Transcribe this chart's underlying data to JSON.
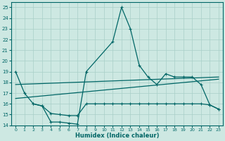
{
  "xlabel": "Humidex (Indice chaleur)",
  "xlim": [
    -0.5,
    23.5
  ],
  "ylim": [
    14,
    25.5
  ],
  "yticks": [
    14,
    15,
    16,
    17,
    18,
    19,
    20,
    21,
    22,
    23,
    24,
    25
  ],
  "xticks": [
    0,
    1,
    2,
    3,
    4,
    5,
    6,
    7,
    8,
    9,
    10,
    11,
    12,
    13,
    14,
    15,
    16,
    17,
    18,
    19,
    20,
    21,
    22,
    23
  ],
  "background_color": "#cde8e2",
  "grid_color": "#a8cfc8",
  "line_color": "#006666",
  "line1_x": [
    0,
    1,
    2,
    3,
    4,
    5,
    6,
    7,
    8,
    11,
    12,
    13,
    14,
    15,
    16,
    17,
    18,
    19,
    20,
    21,
    22,
    23
  ],
  "line1_y": [
    19,
    17,
    16,
    15.8,
    14.3,
    14.3,
    14.2,
    14.1,
    19,
    21.8,
    25,
    23,
    19.6,
    18.5,
    17.8,
    18.8,
    18.5,
    18.5,
    18.5,
    17.8,
    15.9,
    15.5
  ],
  "line2_x": [
    2,
    3,
    4,
    5,
    6,
    7,
    8,
    9,
    10,
    11,
    12,
    13,
    14,
    15,
    16,
    17,
    18,
    19,
    20,
    21,
    22,
    23
  ],
  "line2_y": [
    16,
    15.8,
    15.1,
    15.0,
    14.9,
    14.9,
    16,
    16,
    16,
    16,
    16,
    16,
    16,
    16,
    16,
    16,
    16,
    16,
    16,
    16,
    15.9,
    15.5
  ],
  "trend1_x": [
    0,
    23
  ],
  "trend1_y": [
    16.5,
    18.3
  ],
  "trend2_x": [
    0,
    23
  ],
  "trend2_y": [
    17.8,
    18.5
  ]
}
